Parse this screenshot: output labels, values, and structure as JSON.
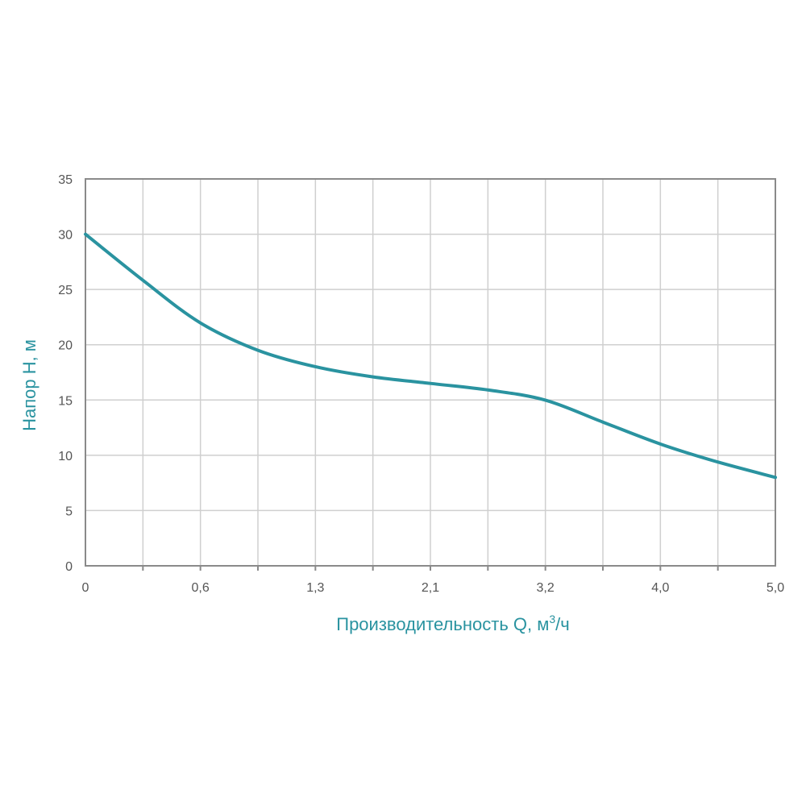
{
  "chart_data": {
    "type": "line",
    "xlabel": "Производительность Q, м",
    "xlabel_sup": "3",
    "xlabel_suffix": "/ч",
    "ylabel": "Напор H, м",
    "xlim": [
      0,
      5.0
    ],
    "ylim": [
      0,
      35
    ],
    "x_tick_labels": [
      "0",
      "0,6",
      "1,3",
      "2,1",
      "3,2",
      "4,0",
      "5,0"
    ],
    "y_tick_labels": [
      "0",
      "5",
      "10",
      "15",
      "20",
      "25",
      "30",
      "35"
    ],
    "grid": true,
    "series": [
      {
        "x": [
          0,
          0.42,
          0.83,
          1.25,
          1.67,
          2.08,
          2.5,
          2.92,
          3.33,
          3.75,
          4.17,
          4.58,
          5.0
        ],
        "y": [
          30,
          25.8,
          22,
          19.5,
          18,
          17.1,
          16.5,
          15.9,
          15,
          13,
          11,
          9.4,
          8
        ]
      }
    ],
    "colors": {
      "line": "#2a93a0",
      "axis_title": "#2a93a0"
    }
  }
}
